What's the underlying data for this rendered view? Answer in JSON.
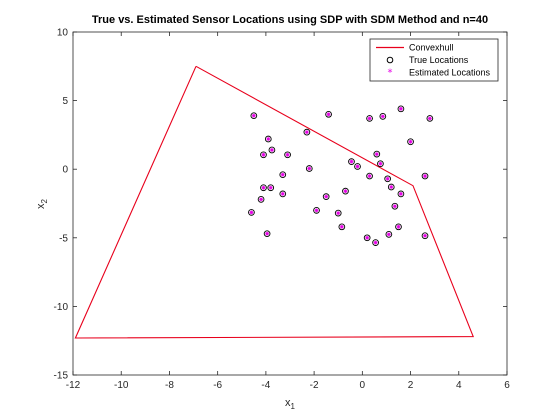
{
  "chart_data": {
    "type": "scatter",
    "title": "True vs. Estimated Sensor Locations using SDP with SDM Method and n=40",
    "xlabel": {
      "base": "x",
      "sub": "1"
    },
    "ylabel": {
      "base": "x",
      "sub": "2"
    },
    "xlim": [
      -12,
      6
    ],
    "ylim": [
      -15,
      10
    ],
    "xticks": [
      -12,
      -10,
      -8,
      -6,
      -4,
      -2,
      0,
      2,
      4,
      6
    ],
    "yticks": [
      -15,
      -10,
      -5,
      0,
      5,
      10
    ],
    "grid": false,
    "legend_position": "top-right",
    "legend": [
      "Convexhull",
      "True Locations",
      "Estimated Locations"
    ],
    "colors": {
      "hull": "#e8001c",
      "true_marker": "#000000",
      "estimated_marker": "#e600e6"
    },
    "convex_hull": {
      "name": "Convexhull",
      "points": [
        [
          -6.9,
          7.5
        ],
        [
          2.1,
          -1.2
        ],
        [
          4.6,
          -12.2
        ],
        [
          -11.9,
          -12.3
        ],
        [
          -6.9,
          7.5
        ]
      ]
    },
    "true_locations": {
      "name": "True Locations",
      "points": [
        [
          -4.5,
          3.9
        ],
        [
          -3.9,
          2.2
        ],
        [
          -3.75,
          1.4
        ],
        [
          -4.1,
          1.05
        ],
        [
          -3.1,
          1.05
        ],
        [
          -2.3,
          2.7
        ],
        [
          -1.4,
          4.0
        ],
        [
          0.3,
          3.7
        ],
        [
          0.85,
          3.85
        ],
        [
          1.6,
          4.4
        ],
        [
          2.0,
          2.0
        ],
        [
          2.8,
          3.7
        ],
        [
          -3.8,
          -1.35
        ],
        [
          -4.1,
          -1.35
        ],
        [
          -3.3,
          -0.4
        ],
        [
          -2.2,
          0.05
        ],
        [
          -3.3,
          -1.8
        ],
        [
          -4.2,
          -2.2
        ],
        [
          -4.6,
          -3.15
        ],
        [
          -3.95,
          -4.7
        ],
        [
          -1.5,
          -2.0
        ],
        [
          -1.9,
          -3.0
        ],
        [
          -0.7,
          -1.6
        ],
        [
          -1.0,
          -3.2
        ],
        [
          -0.85,
          -4.2
        ],
        [
          -0.45,
          0.55
        ],
        [
          -0.2,
          0.2
        ],
        [
          0.3,
          -0.5
        ],
        [
          0.6,
          1.1
        ],
        [
          0.75,
          0.4
        ],
        [
          1.2,
          -1.3
        ],
        [
          1.6,
          -1.8
        ],
        [
          1.35,
          -2.7
        ],
        [
          2.6,
          -0.5
        ],
        [
          1.5,
          -4.2
        ],
        [
          1.1,
          -4.75
        ],
        [
          0.55,
          -5.35
        ],
        [
          0.2,
          -5.0
        ],
        [
          2.6,
          -4.85
        ],
        [
          1.05,
          -0.7
        ]
      ]
    },
    "estimated_locations": {
      "name": "Estimated Locations",
      "points": [
        [
          -4.5,
          3.9
        ],
        [
          -3.9,
          2.2
        ],
        [
          -3.75,
          1.4
        ],
        [
          -4.1,
          1.05
        ],
        [
          -3.1,
          1.05
        ],
        [
          -2.3,
          2.7
        ],
        [
          -1.4,
          4.0
        ],
        [
          0.3,
          3.7
        ],
        [
          0.85,
          3.85
        ],
        [
          1.6,
          4.4
        ],
        [
          2.0,
          2.0
        ],
        [
          2.8,
          3.7
        ],
        [
          -3.8,
          -1.35
        ],
        [
          -4.1,
          -1.35
        ],
        [
          -3.3,
          -0.4
        ],
        [
          -2.2,
          0.05
        ],
        [
          -3.3,
          -1.8
        ],
        [
          -4.2,
          -2.2
        ],
        [
          -4.6,
          -3.15
        ],
        [
          -3.95,
          -4.7
        ],
        [
          -1.5,
          -2.0
        ],
        [
          -1.9,
          -3.0
        ],
        [
          -0.7,
          -1.6
        ],
        [
          -1.0,
          -3.2
        ],
        [
          -0.85,
          -4.2
        ],
        [
          -0.45,
          0.55
        ],
        [
          -0.2,
          0.2
        ],
        [
          0.3,
          -0.5
        ],
        [
          0.6,
          1.1
        ],
        [
          0.75,
          0.4
        ],
        [
          1.2,
          -1.3
        ],
        [
          1.6,
          -1.8
        ],
        [
          1.35,
          -2.7
        ],
        [
          2.6,
          -0.5
        ],
        [
          1.5,
          -4.2
        ],
        [
          1.1,
          -4.75
        ],
        [
          0.55,
          -5.35
        ],
        [
          0.2,
          -5.0
        ],
        [
          2.6,
          -4.85
        ],
        [
          1.05,
          -0.7
        ]
      ]
    }
  }
}
